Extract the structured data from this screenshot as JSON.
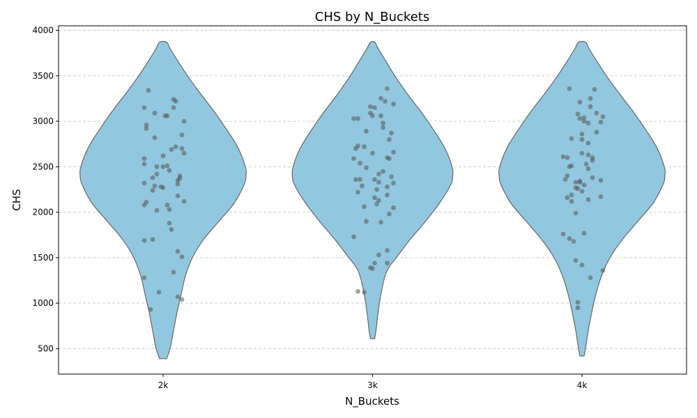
{
  "chart_data": {
    "type": "violin",
    "title": "CHS by N_Buckets",
    "xlabel": "N_Buckets",
    "ylabel": "CHS",
    "categories": [
      "2k",
      "3k",
      "4k"
    ],
    "ylim": [
      220,
      4050
    ],
    "yticks": [
      500,
      1000,
      1500,
      2000,
      2500,
      3000,
      3500,
      4000
    ],
    "grid": {
      "y": true,
      "style": "dashed"
    },
    "colors": {
      "violin_fill": "#92c8df",
      "violin_edge": "#666666",
      "points": "#555555",
      "grid": "#cccccc"
    },
    "violins": [
      {
        "category": "2k",
        "y_min": 390,
        "y_max": 3870,
        "profile": [
          [
            390,
            5
          ],
          [
            500,
            10
          ],
          [
            700,
            15
          ],
          [
            900,
            20
          ],
          [
            1100,
            26
          ],
          [
            1300,
            32
          ],
          [
            1500,
            42
          ],
          [
            1700,
            58
          ],
          [
            1900,
            80
          ],
          [
            2100,
            102
          ],
          [
            2300,
            116
          ],
          [
            2400,
            119
          ],
          [
            2500,
            118
          ],
          [
            2700,
            108
          ],
          [
            2900,
            92
          ],
          [
            3100,
            74
          ],
          [
            3300,
            54
          ],
          [
            3500,
            35
          ],
          [
            3700,
            18
          ],
          [
            3800,
            10
          ],
          [
            3870,
            5
          ]
        ],
        "points": [
          [
            3340,
            -0.07
          ],
          [
            3240,
            0.05
          ],
          [
            3220,
            0.06
          ],
          [
            3150,
            -0.09
          ],
          [
            3150,
            0.05
          ],
          [
            3090,
            -0.04
          ],
          [
            3060,
            0.01
          ],
          [
            3060,
            0.02
          ],
          [
            3000,
            0.1
          ],
          [
            2960,
            -0.08
          ],
          [
            2920,
            -0.08
          ],
          [
            2850,
            0.09
          ],
          [
            2820,
            -0.04
          ],
          [
            2720,
            0.06
          ],
          [
            2700,
            0.09
          ],
          [
            2690,
            0.04
          ],
          [
            2650,
            0.1
          ],
          [
            2620,
            0.0
          ],
          [
            2590,
            -0.09
          ],
          [
            2530,
            -0.09
          ],
          [
            2510,
            0.02
          ],
          [
            2500,
            -0.03
          ],
          [
            2500,
            0.0
          ],
          [
            2460,
            0.03
          ],
          [
            2420,
            -0.03
          ],
          [
            2400,
            0.08
          ],
          [
            2380,
            -0.05
          ],
          [
            2370,
            0.08
          ],
          [
            2350,
            0.07
          ],
          [
            2320,
            -0.09
          ],
          [
            2310,
            0.07
          ],
          [
            2290,
            -0.04
          ],
          [
            2280,
            -0.01
          ],
          [
            2270,
            0.0
          ],
          [
            2240,
            -0.05
          ],
          [
            2180,
            0.07
          ],
          [
            2120,
            0.1
          ],
          [
            2110,
            -0.08
          ],
          [
            2080,
            -0.09
          ],
          [
            2080,
            0.02
          ],
          [
            2030,
            0.03
          ],
          [
            2020,
            -0.03
          ],
          [
            1880,
            0.03
          ],
          [
            1810,
            0.04
          ],
          [
            1700,
            -0.05
          ],
          [
            1690,
            -0.09
          ],
          [
            1570,
            0.07
          ],
          [
            1510,
            0.09
          ],
          [
            1340,
            0.05
          ],
          [
            1280,
            -0.09
          ],
          [
            1120,
            -0.02
          ],
          [
            1070,
            0.07
          ],
          [
            1040,
            0.09
          ],
          [
            930,
            -0.06
          ]
        ]
      },
      {
        "category": "3k",
        "y_min": 610,
        "y_max": 3870,
        "profile": [
          [
            610,
            3
          ],
          [
            700,
            5
          ],
          [
            900,
            8
          ],
          [
            1100,
            12
          ],
          [
            1300,
            18
          ],
          [
            1400,
            24
          ],
          [
            1500,
            34
          ],
          [
            1700,
            54
          ],
          [
            1900,
            76
          ],
          [
            2100,
            96
          ],
          [
            2300,
            112
          ],
          [
            2400,
            115
          ],
          [
            2500,
            114
          ],
          [
            2700,
            104
          ],
          [
            2900,
            88
          ],
          [
            3100,
            70
          ],
          [
            3300,
            50
          ],
          [
            3500,
            32
          ],
          [
            3700,
            16
          ],
          [
            3800,
            8
          ],
          [
            3870,
            3
          ]
        ],
        "points": [
          [
            3360,
            0.07
          ],
          [
            3250,
            0.04
          ],
          [
            3220,
            0.06
          ],
          [
            3190,
            0.1
          ],
          [
            3160,
            -0.01
          ],
          [
            3150,
            0.01
          ],
          [
            3090,
            -0.01
          ],
          [
            3060,
            0.04
          ],
          [
            3060,
            0.0
          ],
          [
            3030,
            -0.09
          ],
          [
            3030,
            -0.07
          ],
          [
            2980,
            0.05
          ],
          [
            2930,
            0.05
          ],
          [
            2890,
            -0.03
          ],
          [
            2870,
            0.09
          ],
          [
            2800,
            0.08
          ],
          [
            2730,
            -0.07
          ],
          [
            2720,
            -0.04
          ],
          [
            2700,
            -0.08
          ],
          [
            2660,
            0.1
          ],
          [
            2650,
            0.0
          ],
          [
            2600,
            0.07
          ],
          [
            2590,
            0.08
          ],
          [
            2590,
            -0.09
          ],
          [
            2540,
            -0.06
          ],
          [
            2490,
            -0.03
          ],
          [
            2450,
            0.05
          ],
          [
            2420,
            0.03
          ],
          [
            2390,
            0.09
          ],
          [
            2360,
            -0.08
          ],
          [
            2360,
            -0.06
          ],
          [
            2360,
            0.01
          ],
          [
            2330,
            0.03
          ],
          [
            2320,
            0.1
          ],
          [
            2290,
            -0.05
          ],
          [
            2280,
            0.07
          ],
          [
            2250,
            0.02
          ],
          [
            2220,
            -0.07
          ],
          [
            2190,
            0.07
          ],
          [
            2160,
            0.01
          ],
          [
            2130,
            0.03
          ],
          [
            2090,
            0.02
          ],
          [
            2060,
            -0.04
          ],
          [
            2050,
            0.1
          ],
          [
            1980,
            0.08
          ],
          [
            1900,
            -0.03
          ],
          [
            1890,
            0.04
          ],
          [
            1730,
            -0.09
          ],
          [
            1580,
            0.07
          ],
          [
            1530,
            0.03
          ],
          [
            1440,
            0.01
          ],
          [
            1440,
            0.07
          ],
          [
            1390,
            -0.01
          ],
          [
            1380,
            0.0
          ],
          [
            1130,
            -0.07
          ],
          [
            1120,
            -0.04
          ]
        ]
      },
      {
        "category": "4k",
        "y_min": 420,
        "y_max": 3870,
        "profile": [
          [
            420,
            3
          ],
          [
            500,
            5
          ],
          [
            700,
            9
          ],
          [
            900,
            14
          ],
          [
            1100,
            20
          ],
          [
            1300,
            28
          ],
          [
            1500,
            40
          ],
          [
            1700,
            58
          ],
          [
            1900,
            80
          ],
          [
            2100,
            102
          ],
          [
            2300,
            116
          ],
          [
            2400,
            119
          ],
          [
            2500,
            118
          ],
          [
            2700,
            108
          ],
          [
            2900,
            92
          ],
          [
            3100,
            74
          ],
          [
            3300,
            54
          ],
          [
            3500,
            35
          ],
          [
            3700,
            18
          ],
          [
            3800,
            10
          ],
          [
            3870,
            5
          ]
        ],
        "points": [
          [
            3360,
            -0.06
          ],
          [
            3350,
            0.06
          ],
          [
            3250,
            0.04
          ],
          [
            3210,
            -0.01
          ],
          [
            3160,
            0.04
          ],
          [
            3090,
            0.07
          ],
          [
            3080,
            -0.02
          ],
          [
            3050,
            0.1
          ],
          [
            3040,
            0.01
          ],
          [
            3030,
            -0.01
          ],
          [
            3000,
            0.01
          ],
          [
            2990,
            0.09
          ],
          [
            2980,
            0.03
          ],
          [
            2880,
            0.07
          ],
          [
            2860,
            0.0
          ],
          [
            2810,
            -0.05
          ],
          [
            2800,
            0.0
          ],
          [
            2760,
            0.03
          ],
          [
            2650,
            0.0
          ],
          [
            2630,
            0.03
          ],
          [
            2610,
            -0.09
          ],
          [
            2600,
            -0.07
          ],
          [
            2600,
            0.05
          ],
          [
            2570,
            0.05
          ],
          [
            2530,
            0.02
          ],
          [
            2510,
            -0.05
          ],
          [
            2500,
            -0.06
          ],
          [
            2480,
            0.03
          ],
          [
            2400,
            -0.07
          ],
          [
            2380,
            0.05
          ],
          [
            2360,
            -0.08
          ],
          [
            2350,
            0.09
          ],
          [
            2340,
            -0.01
          ],
          [
            2330,
            -0.03
          ],
          [
            2330,
            -0.01
          ],
          [
            2300,
            0.01
          ],
          [
            2270,
            -0.03
          ],
          [
            2260,
            -0.02
          ],
          [
            2230,
            0.0
          ],
          [
            2190,
            -0.05
          ],
          [
            2170,
            0.09
          ],
          [
            2160,
            -0.07
          ],
          [
            2140,
            0.03
          ],
          [
            2120,
            -0.05
          ],
          [
            1990,
            -0.03
          ],
          [
            1770,
            0.01
          ],
          [
            1760,
            -0.09
          ],
          [
            1710,
            -0.06
          ],
          [
            1680,
            -0.04
          ],
          [
            1470,
            -0.03
          ],
          [
            1420,
            -0.0
          ],
          [
            1360,
            0.1
          ],
          [
            1280,
            0.04
          ],
          [
            1010,
            -0.02
          ],
          [
            950,
            -0.02
          ]
        ]
      }
    ]
  }
}
